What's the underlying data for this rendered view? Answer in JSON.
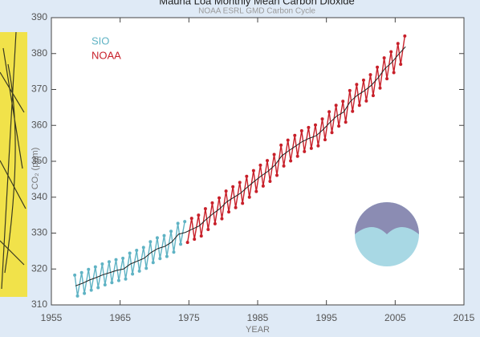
{
  "chart_data": {
    "type": "line",
    "title": "Mauna Loa Monthly Mean Carbon Dioxide",
    "subtitle": "NOAA ESRL GMD Carbon Cycle",
    "x_label": "YEAR",
    "y_label": "CO₂ (ppm)",
    "xlim": [
      1955,
      2015
    ],
    "xticks": [
      1955,
      1965,
      1975,
      1985,
      1995,
      2005,
      2015
    ],
    "ylim": [
      310,
      390
    ],
    "yticks": [
      310,
      320,
      330,
      340,
      350,
      360,
      370,
      380,
      390
    ],
    "series": [
      {
        "name": "SIO",
        "color": "#5fb3c4",
        "x": [
          1958.4,
          1958.8,
          1959.4,
          1959.8,
          1960.4,
          1960.8,
          1961.4,
          1961.8,
          1962.4,
          1962.8,
          1963.4,
          1963.8,
          1964.4,
          1964.8,
          1965.4,
          1965.8,
          1966.4,
          1966.8,
          1967.4,
          1967.8,
          1968.4,
          1968.8,
          1969.4,
          1969.8,
          1970.4,
          1970.8,
          1971.4,
          1971.8,
          1972.4,
          1972.8,
          1973.4,
          1973.8,
          1974.4
        ],
        "values": [
          318.3,
          312.5,
          319.0,
          313.2,
          319.9,
          314.1,
          320.6,
          314.8,
          321.4,
          315.6,
          322.0,
          316.2,
          322.6,
          316.8,
          323.0,
          317.2,
          324.4,
          318.6,
          325.2,
          319.4,
          326.0,
          320.2,
          327.6,
          321.8,
          328.7,
          322.9,
          329.3,
          323.5,
          330.5,
          324.7,
          332.7,
          326.9,
          333.2
        ]
      },
      {
        "name": "NOAA",
        "color": "#c8202a",
        "x": [
          1974.8,
          1975.4,
          1975.8,
          1976.4,
          1976.8,
          1977.4,
          1977.8,
          1978.4,
          1978.8,
          1979.4,
          1979.8,
          1980.4,
          1980.8,
          1981.4,
          1981.8,
          1982.4,
          1982.8,
          1983.4,
          1983.8,
          1984.4,
          1984.8,
          1985.4,
          1985.8,
          1986.4,
          1986.8,
          1987.4,
          1987.8,
          1988.4,
          1988.8,
          1989.4,
          1989.8,
          1990.4,
          1990.8,
          1991.4,
          1991.8,
          1992.4,
          1992.8,
          1993.4,
          1993.8,
          1994.4,
          1994.8,
          1995.4,
          1995.8,
          1996.4,
          1996.8,
          1997.4,
          1997.8,
          1998.4,
          1998.8,
          1999.4,
          1999.8,
          2000.4,
          2000.8,
          2001.4,
          2001.8,
          2002.4,
          2002.8,
          2003.4,
          2003.8,
          2004.4,
          2004.8,
          2005.4,
          2005.8,
          2006.4
        ],
        "values": [
          327.4,
          334.1,
          328.3,
          335.0,
          329.2,
          336.8,
          331.0,
          338.4,
          332.6,
          339.8,
          334.0,
          341.7,
          335.9,
          342.9,
          337.1,
          344.1,
          338.3,
          345.8,
          340.0,
          347.4,
          341.6,
          348.9,
          343.1,
          350.2,
          344.4,
          351.9,
          346.1,
          354.5,
          348.7,
          355.9,
          350.1,
          357.2,
          351.4,
          358.5,
          352.7,
          359.4,
          353.6,
          360.1,
          354.3,
          361.8,
          356.0,
          363.8,
          358.0,
          365.6,
          359.8,
          366.7,
          360.9,
          369.7,
          363.9,
          371.4,
          365.6,
          372.6,
          366.8,
          374.1,
          368.3,
          376.2,
          370.4,
          378.8,
          373.0,
          380.5,
          374.7,
          382.8,
          377.0,
          384.9
        ]
      },
      {
        "color": "#222222",
        "x": [
          1958.5,
          1959.5,
          1960.5,
          1961.5,
          1962.5,
          1963.5,
          1964.5,
          1965.5,
          1966.5,
          1967.5,
          1968.5,
          1969.5,
          1970.5,
          1971.5,
          1972.5,
          1973.5,
          1974.5,
          1975.5,
          1976.5,
          1977.5,
          1978.5,
          1979.5,
          1980.5,
          1981.5,
          1982.5,
          1983.5,
          1984.5,
          1985.5,
          1986.5,
          1987.5,
          1988.5,
          1989.5,
          1990.5,
          1991.5,
          1992.5,
          1993.5,
          1994.5,
          1995.5,
          1996.5,
          1997.5,
          1998.5,
          1999.5,
          2000.5,
          2001.5,
          2002.5,
          2003.5,
          2004.5,
          2005.5,
          2006.5
        ],
        "values": [
          315.3,
          316.0,
          316.9,
          317.6,
          318.4,
          319.0,
          319.6,
          320.0,
          321.4,
          322.2,
          323.0,
          324.6,
          325.7,
          326.3,
          327.5,
          329.7,
          330.2,
          331.1,
          332.0,
          333.8,
          335.4,
          336.8,
          338.7,
          339.9,
          341.1,
          342.8,
          344.4,
          345.9,
          347.2,
          348.9,
          351.5,
          352.9,
          354.2,
          355.5,
          356.4,
          357.1,
          358.8,
          360.8,
          362.6,
          363.7,
          366.7,
          368.4,
          369.6,
          371.1,
          373.2,
          375.8,
          377.5,
          379.8,
          381.9
        ]
      }
    ]
  }
}
